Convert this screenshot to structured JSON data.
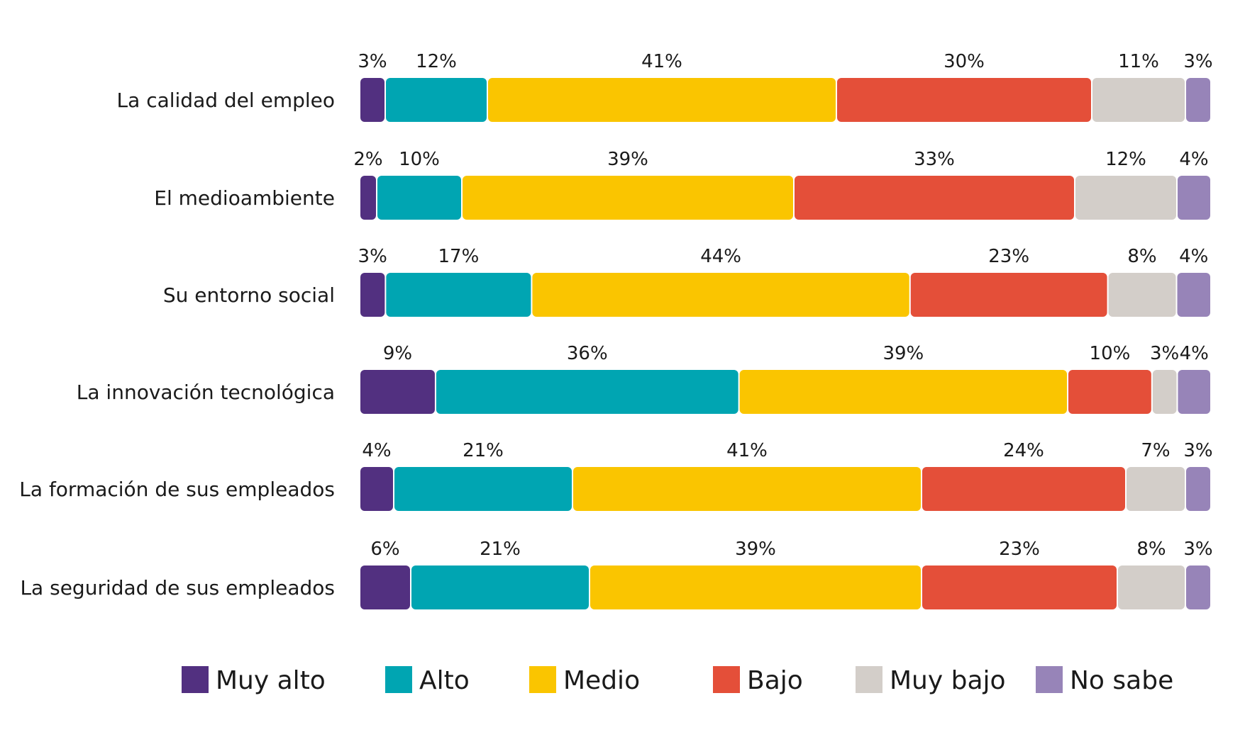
{
  "chart_data": {
    "type": "bar",
    "orientation": "horizontal",
    "stacked": true,
    "percent": true,
    "title": "",
    "xlabel": "",
    "ylabel": "",
    "grid": false,
    "legend_position": "bottom",
    "categories": [
      "La calidad del empleo",
      "El medioambiente",
      "Su entorno social",
      "La innovación tecnológica",
      "La formación de sus empleados",
      "La seguridad de sus empleados"
    ],
    "series": [
      {
        "name": "Muy alto",
        "color": "#523080",
        "values": [
          3,
          2,
          3,
          9,
          4,
          6
        ]
      },
      {
        "name": "Alto",
        "color": "#00A5B2",
        "values": [
          12,
          10,
          17,
          36,
          21,
          21
        ]
      },
      {
        "name": "Medio",
        "color": "#FAC500",
        "values": [
          41,
          39,
          44,
          39,
          41,
          39
        ]
      },
      {
        "name": "Bajo",
        "color": "#E44F39",
        "values": [
          30,
          33,
          23,
          10,
          24,
          23
        ]
      },
      {
        "name": "Muy bajo",
        "color": "#D3CEC9",
        "values": [
          11,
          12,
          8,
          3,
          7,
          8
        ]
      },
      {
        "name": "No sabe",
        "color": "#9784B8",
        "values": [
          3,
          4,
          4,
          4,
          3,
          3
        ]
      }
    ]
  }
}
